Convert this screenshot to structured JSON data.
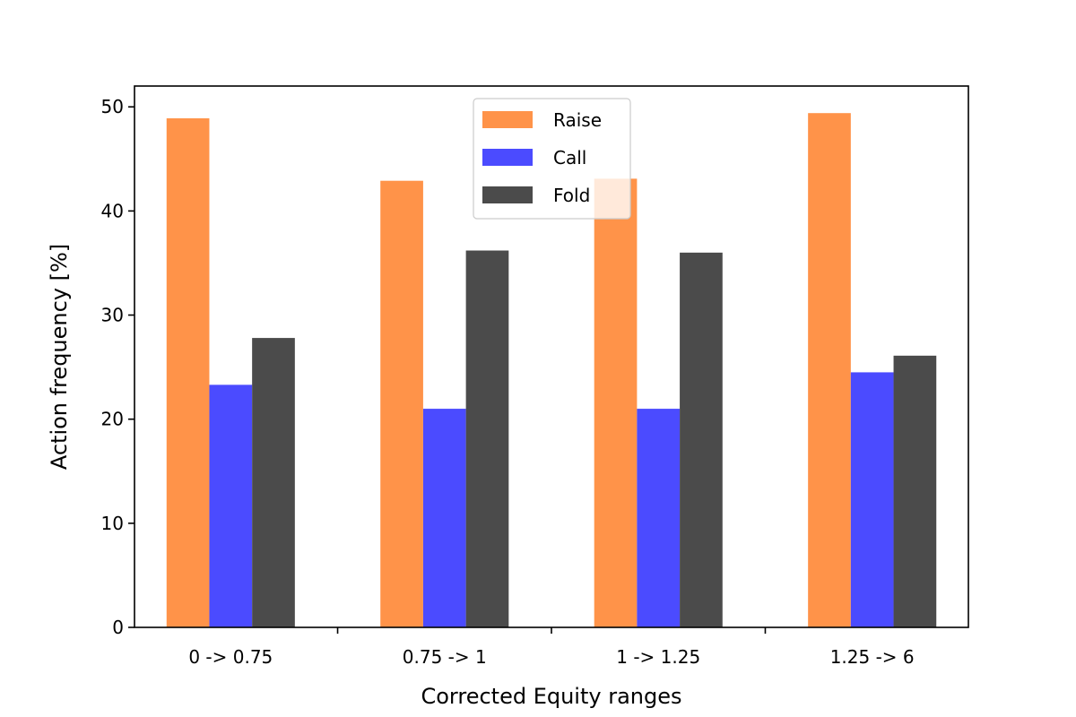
{
  "chart_data": {
    "type": "bar",
    "title": "",
    "xlabel": "Corrected Equity ranges",
    "ylabel": "Action frequency [%]",
    "categories": [
      "0 -> 0.75",
      "0.75 -> 1",
      "1 -> 1.25",
      "1.25 -> 6"
    ],
    "series": [
      {
        "name": "Raise",
        "color": "#ff9349",
        "values": [
          48.9,
          42.9,
          43.1,
          49.4
        ]
      },
      {
        "name": "Call",
        "color": "#4b4bff",
        "values": [
          23.3,
          21.0,
          21.0,
          24.5
        ]
      },
      {
        "name": "Fold",
        "color": "#4b4b4b",
        "values": [
          27.8,
          36.2,
          36.0,
          26.1
        ]
      }
    ],
    "ylim": [
      0,
      52
    ],
    "yticks": [
      0,
      10,
      20,
      30,
      40,
      50
    ],
    "grid": false,
    "legend_position": "top-center"
  }
}
